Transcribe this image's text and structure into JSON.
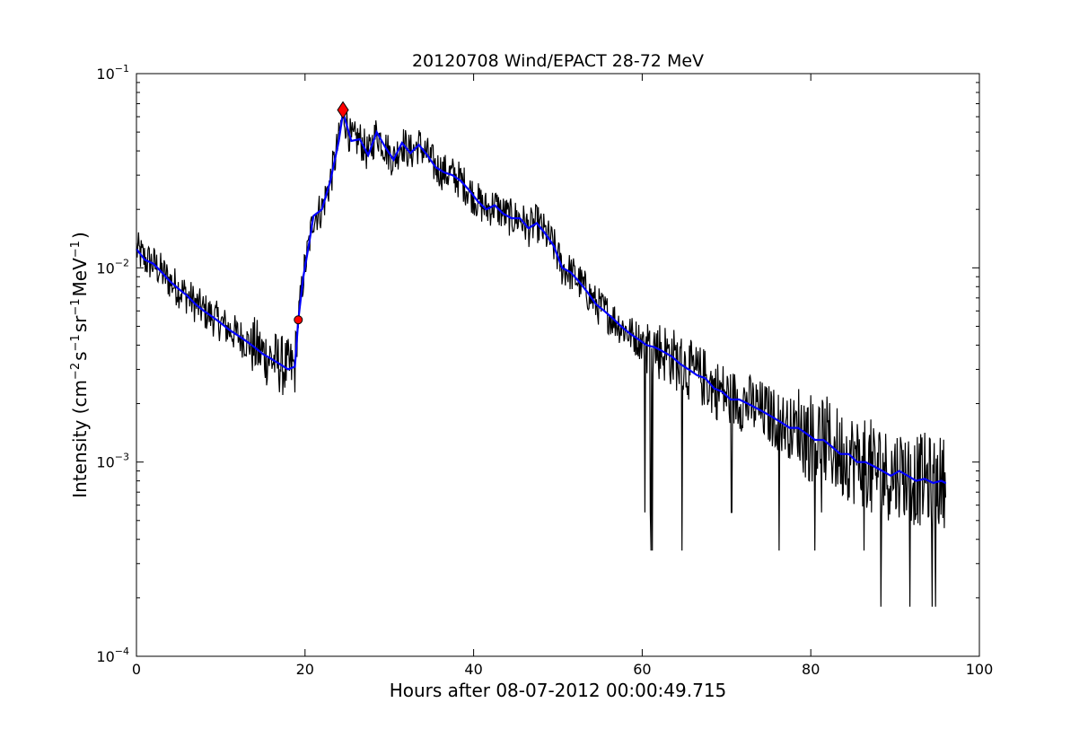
{
  "chart_data": {
    "type": "line",
    "title": "20120708 Wind/EPACT 28-72 MeV",
    "xlabel": "Hours after 08-07-2012 00:00:49.715",
    "ylabel": {
      "prefix": "Intensity (cm",
      "exp1": "−2",
      "s": "s",
      "exp2": "−1",
      "sr": "sr",
      "exp3": "−1",
      "mev": "MeV",
      "exp4": "−1",
      "suffix": ")"
    },
    "xlim": [
      0,
      100
    ],
    "ylim": [
      0.0001,
      0.1
    ],
    "yscale": "log",
    "grid": false,
    "x_ticks": [
      {
        "value": 0,
        "label": "0"
      },
      {
        "value": 20,
        "label": "20"
      },
      {
        "value": 40,
        "label": "40"
      },
      {
        "value": 60,
        "label": "60"
      },
      {
        "value": 80,
        "label": "80"
      },
      {
        "value": 100,
        "label": "100"
      }
    ],
    "y_ticks": [
      {
        "value": 0.0001,
        "base": "10",
        "exp": "−4"
      },
      {
        "value": 0.001,
        "base": "10",
        "exp": "−3"
      },
      {
        "value": 0.01,
        "base": "10",
        "exp": "−2"
      },
      {
        "value": 0.1,
        "base": "10",
        "exp": "−1"
      }
    ],
    "series": [
      {
        "color": "#000000",
        "x": [
          0,
          1,
          2,
          3,
          4,
          5,
          6,
          7,
          8,
          9,
          10,
          11,
          12,
          13,
          14,
          15,
          16,
          17,
          18,
          18.8,
          19.2,
          19.8,
          20.5,
          21,
          22,
          23,
          24,
          24.5,
          25.5,
          26.5,
          27.5,
          28.5,
          29.5,
          30.5,
          31.5,
          32.5,
          33.5,
          34.5,
          35.5,
          36.5,
          37.5,
          38.5,
          39.5,
          40.5,
          41.5,
          42.5,
          43.5,
          44.5,
          45.5,
          46.5,
          47.5,
          48.5,
          49.5,
          50.5,
          51.5,
          52.5,
          53.5,
          54.5,
          55.5,
          56.5,
          57.5,
          58.5,
          59.5,
          60.5,
          61.5,
          62.5,
          63.5,
          64.5,
          65.5,
          66.5,
          67.5,
          68.5,
          69.5,
          70.5,
          71.5,
          72.5,
          73.5,
          74.5,
          75.5,
          76.5,
          77.5,
          78.5,
          79.5,
          80.5,
          81.5,
          82.5,
          83.5,
          84.5,
          85.5,
          86.5,
          87.5,
          88.5,
          89.5,
          90.5,
          91.5,
          92.5,
          93.5,
          94.5,
          95.5,
          96
        ],
        "y": [
          0.0125,
          0.011,
          0.0105,
          0.0095,
          0.0085,
          0.0078,
          0.0072,
          0.0065,
          0.006,
          0.0056,
          0.0052,
          0.0048,
          0.0045,
          0.0042,
          0.0039,
          0.0036,
          0.0034,
          0.0032,
          0.003,
          0.0031,
          0.0054,
          0.009,
          0.0135,
          0.0185,
          0.02,
          0.028,
          0.045,
          0.063,
          0.045,
          0.046,
          0.038,
          0.05,
          0.042,
          0.036,
          0.044,
          0.039,
          0.043,
          0.038,
          0.033,
          0.031,
          0.03,
          0.028,
          0.025,
          0.022,
          0.02,
          0.021,
          0.019,
          0.018,
          0.018,
          0.016,
          0.017,
          0.015,
          0.013,
          0.01,
          0.0095,
          0.0085,
          0.0075,
          0.0065,
          0.006,
          0.0055,
          0.005,
          0.0046,
          0.0043,
          0.004,
          0.0039,
          0.0037,
          0.0035,
          0.0032,
          0.003,
          0.0028,
          0.0027,
          0.0024,
          0.0023,
          0.0021,
          0.0021,
          0.002,
          0.0019,
          0.0018,
          0.0017,
          0.0016,
          0.0015,
          0.0015,
          0.0014,
          0.0013,
          0.0013,
          0.0012,
          0.0011,
          0.0011,
          0.001,
          0.001,
          0.00095,
          0.0009,
          0.00085,
          0.0009,
          0.00085,
          0.0008,
          0.00082,
          0.00078,
          0.0008,
          0.00078
        ]
      },
      {
        "color": "#0000ff",
        "x": [
          0,
          1,
          2,
          3,
          4,
          5,
          6,
          7,
          8,
          9,
          10,
          11,
          12,
          13,
          14,
          15,
          16,
          17,
          18,
          18.8,
          19.2,
          19.8,
          20.5,
          21,
          22,
          23,
          24,
          24.5,
          25.5,
          26.5,
          27.5,
          28.5,
          29.5,
          30.5,
          31.5,
          32.5,
          33.5,
          34.5,
          35.5,
          36.5,
          37.5,
          38.5,
          39.5,
          40.5,
          41.5,
          42.5,
          43.5,
          44.5,
          45.5,
          46.5,
          47.5,
          48.5,
          49.5,
          50.5,
          51.5,
          52.5,
          53.5,
          54.5,
          55.5,
          56.5,
          57.5,
          58.5,
          59.5,
          60.5,
          61.5,
          62.5,
          63.5,
          64.5,
          65.5,
          66.5,
          67.5,
          68.5,
          69.5,
          70.5,
          71.5,
          72.5,
          73.5,
          74.5,
          75.5,
          76.5,
          77.5,
          78.5,
          79.5,
          80.5,
          81.5,
          82.5,
          83.5,
          84.5,
          85.5,
          86.5,
          87.5,
          88.5,
          89.5,
          90.5,
          91.5,
          92.5,
          93.5,
          94.5,
          95.5,
          96
        ],
        "y": [
          0.0125,
          0.011,
          0.0105,
          0.0095,
          0.0085,
          0.0078,
          0.0072,
          0.0065,
          0.006,
          0.0056,
          0.0052,
          0.0048,
          0.0045,
          0.0042,
          0.0039,
          0.0036,
          0.0034,
          0.0032,
          0.003,
          0.0031,
          0.0054,
          0.009,
          0.0135,
          0.0185,
          0.02,
          0.028,
          0.045,
          0.063,
          0.045,
          0.046,
          0.038,
          0.05,
          0.042,
          0.036,
          0.044,
          0.039,
          0.043,
          0.038,
          0.033,
          0.031,
          0.03,
          0.028,
          0.025,
          0.022,
          0.02,
          0.021,
          0.019,
          0.018,
          0.018,
          0.016,
          0.017,
          0.015,
          0.013,
          0.01,
          0.0095,
          0.0085,
          0.0075,
          0.0065,
          0.006,
          0.0055,
          0.005,
          0.0046,
          0.0043,
          0.004,
          0.0039,
          0.0037,
          0.0035,
          0.0032,
          0.003,
          0.0028,
          0.0027,
          0.0024,
          0.0023,
          0.0021,
          0.0021,
          0.002,
          0.0019,
          0.0018,
          0.0017,
          0.0016,
          0.0015,
          0.0015,
          0.0014,
          0.0013,
          0.0013,
          0.0012,
          0.0011,
          0.0011,
          0.001,
          0.001,
          0.00095,
          0.0009,
          0.00085,
          0.0009,
          0.00085,
          0.0008,
          0.00082,
          0.00078,
          0.0008,
          0.00078
        ]
      }
    ],
    "markers": [
      {
        "x": 19.2,
        "y": 0.0054,
        "shape": "circle",
        "color": "#ff0000"
      },
      {
        "x": 24.5,
        "y": 0.065,
        "shape": "diamond",
        "color": "#ff0000"
      }
    ]
  }
}
